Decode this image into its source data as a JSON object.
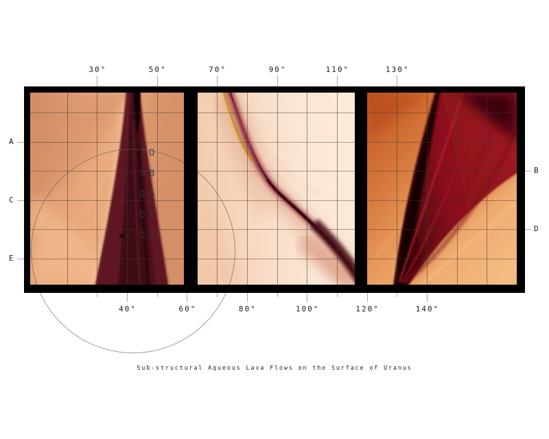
{
  "caption": "Sub-structural Aqueous Lava Flows on the Surface of Uranus",
  "axes": {
    "top": [
      {
        "deg": 30,
        "label": "30°"
      },
      {
        "deg": 50,
        "label": "50°"
      },
      {
        "deg": 70,
        "label": "70°"
      },
      {
        "deg": 90,
        "label": "90°"
      },
      {
        "deg": 110,
        "label": "110°"
      },
      {
        "deg": 130,
        "label": "130°"
      }
    ],
    "bottom": [
      {
        "deg": 40,
        "label": "40°"
      },
      {
        "deg": 60,
        "label": "60°"
      },
      {
        "deg": 80,
        "label": "80°"
      },
      {
        "deg": 100,
        "label": "100°"
      },
      {
        "deg": 120,
        "label": "120°"
      },
      {
        "deg": 140,
        "label": "140°"
      }
    ],
    "bottom_minor_tick_degs": [
      30,
      50,
      70,
      90,
      110,
      130
    ],
    "left_rows": [
      "A",
      "C",
      "E"
    ],
    "right_rows": [
      "B",
      "D"
    ],
    "radial_scale": [
      "1.0",
      "0.8",
      "0.6",
      "0.4",
      "0.2"
    ]
  },
  "colors": {
    "frame": "#000000",
    "panel1_base": "#e5a478",
    "panel2_base": "#f8dcc6",
    "panel3_base": "#d4763a",
    "flow_maroon": "#5e1722",
    "gold_strand": "#c08618",
    "tick_gray": "#a9a9a9",
    "grid_line": "rgba(72,56,46,0.55)",
    "label_text": "#1b1b1b",
    "scale_text": "#34343e",
    "caption_text": "#262626"
  },
  "chart_data": {
    "type": "heatmap",
    "title": "Sub-structural Aqueous Lava Flows on the Surface of Uranus",
    "description": "Three framed abstract lava-flow image panels sharing one angular x-axis; an overlay circle with a radial 0.2–1.0 scale is centered on the 40° line of panel 1",
    "x_axis": {
      "unit": "degrees",
      "top_tick_labels": [
        30,
        50,
        70,
        90,
        110,
        130
      ],
      "bottom_tick_labels": [
        40,
        60,
        80,
        100,
        120,
        140
      ],
      "bottom_minor_ticks": [
        30,
        50,
        70,
        90,
        110,
        130
      ]
    },
    "row_gridline_labels": {
      "left": [
        "A",
        "C",
        "E"
      ],
      "right": [
        "B",
        "D"
      ]
    },
    "radial_scale_values": [
      1.0,
      0.8,
      0.6,
      0.4,
      0.2
    ],
    "panels": [
      {
        "index": 1,
        "approx_deg_range": [
          8,
          59
        ],
        "visual": "dark maroon vertical flow widening downward on salmon background, overlaid circle and radial scale"
      },
      {
        "index": 2,
        "approx_deg_range": [
          64,
          116
        ],
        "visual": "thin flow with golden strands curving from top-left down to bottom-right corner on pale cream background"
      },
      {
        "index": 3,
        "approx_deg_range": [
          120,
          170
        ],
        "visual": "fan of dark red flows converging to a point at bottom-left on orange background"
      }
    ],
    "legend_position": "none",
    "grid": true
  }
}
